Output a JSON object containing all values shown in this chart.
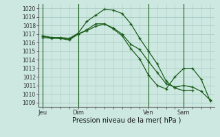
{
  "title": "Pression niveau de la mer( hPa )",
  "bg_color": "#cce8e0",
  "grid_color": "#aaccc4",
  "line_color": "#1a5c1a",
  "ylim": [
    1008.5,
    1020.5
  ],
  "yticks": [
    1009,
    1010,
    1011,
    1012,
    1013,
    1014,
    1015,
    1016,
    1017,
    1018,
    1019,
    1020
  ],
  "xtick_labels": [
    "Jeu",
    "Dim",
    "Ven",
    "Sam"
  ],
  "xtick_positions": [
    0,
    8,
    24,
    32
  ],
  "vlines": [
    0,
    8,
    24,
    32
  ],
  "xlim": [
    -1,
    39
  ],
  "series": [
    {
      "x": [
        0,
        2,
        4,
        6,
        8,
        10,
        12,
        14,
        16,
        18,
        20,
        22,
        24,
        26,
        28,
        30,
        32,
        34
      ],
      "y": [
        1016.8,
        1016.6,
        1016.6,
        1016.5,
        1017.1,
        1018.5,
        1019.2,
        1019.9,
        1019.8,
        1019.4,
        1018.2,
        1016.5,
        1015.0,
        1013.5,
        1011.5,
        1010.7,
        1010.4,
        1010.4
      ]
    },
    {
      "x": [
        0,
        2,
        4,
        6,
        8,
        10,
        12,
        14,
        16,
        18,
        20,
        22,
        24,
        26,
        28,
        30,
        32,
        34,
        36,
        38
      ],
      "y": [
        1016.6,
        1016.5,
        1016.5,
        1016.3,
        1017.0,
        1017.5,
        1018.2,
        1018.2,
        1017.7,
        1017.0,
        1015.8,
        1015.2,
        1013.8,
        1012.5,
        1011.2,
        1010.8,
        1011.0,
        1010.8,
        1010.3,
        1009.3
      ]
    },
    {
      "x": [
        0,
        2,
        4,
        6,
        8,
        10,
        12,
        14,
        16,
        18,
        20,
        22,
        24,
        26,
        28,
        30,
        32,
        34,
        36,
        38
      ],
      "y": [
        1016.7,
        1016.6,
        1016.5,
        1016.4,
        1017.0,
        1017.4,
        1017.9,
        1018.2,
        1017.6,
        1016.8,
        1015.3,
        1014.1,
        1012.2,
        1011.0,
        1010.6,
        1012.0,
        1013.0,
        1013.0,
        1011.7,
        1009.2
      ]
    }
  ]
}
